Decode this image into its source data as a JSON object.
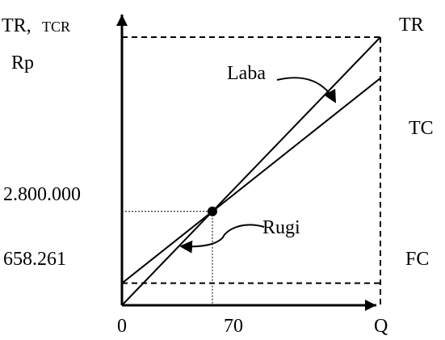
{
  "chart_data": {
    "type": "line",
    "title": "",
    "xlabel": "Q",
    "ylabel_parts": [
      "TR,",
      "TCR",
      "Rp"
    ],
    "x_ticks": [
      {
        "label": "0",
        "value": 0
      },
      {
        "label": "70",
        "value": 70
      }
    ],
    "y_ticks": [
      {
        "label": "2.800.000",
        "value": 2800000
      },
      {
        "label": "658.261",
        "value": 658261
      }
    ],
    "xlim": [
      0,
      200
    ],
    "ylim": [
      0,
      8000000
    ],
    "break_even": {
      "q": 70,
      "value": 2800000
    },
    "fixed_cost": 658261,
    "series": [
      {
        "name": "TR",
        "points": [
          [
            0,
            0
          ],
          [
            200,
            8000000
          ]
        ]
      },
      {
        "name": "TC",
        "points": [
          [
            0,
            658261
          ],
          [
            200,
            6776000
          ]
        ]
      },
      {
        "name": "FC",
        "points": [
          [
            0,
            658261
          ],
          [
            200,
            658261
          ]
        ]
      }
    ],
    "annotations": [
      {
        "text": "Laba",
        "region": "profit"
      },
      {
        "text": "Rugi",
        "region": "loss"
      }
    ],
    "grid": false,
    "legend": "right",
    "colors": {
      "ink": "#000000",
      "background": "#ffffff"
    }
  }
}
